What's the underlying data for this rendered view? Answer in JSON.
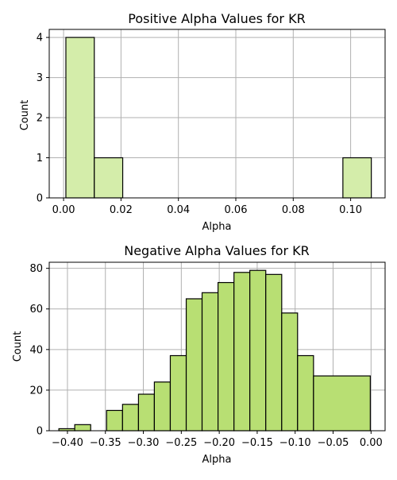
{
  "colors": {
    "positive_fill": "#d4edaa",
    "negative_fill": "#b8df73",
    "edge": "#000000",
    "grid": "#b0b0b0",
    "background": "#ffffff"
  },
  "chart_data": [
    {
      "type": "bar",
      "histogram": true,
      "title": "Positive Alpha Values for KR",
      "xlabel": "Alpha",
      "ylabel": "Count",
      "xlim": [
        -0.005,
        0.112
      ],
      "ylim": [
        0,
        4.2
      ],
      "grid": true,
      "xticks": [
        0.0,
        0.02,
        0.04,
        0.06,
        0.08,
        0.1
      ],
      "xtick_labels": [
        "0.00",
        "0.02",
        "0.04",
        "0.06",
        "0.08",
        "0.10"
      ],
      "yticks": [
        0,
        1,
        2,
        3,
        4
      ],
      "ytick_labels": [
        "0",
        "1",
        "2",
        "3",
        "4"
      ],
      "bins": [
        {
          "x0": 0.0008,
          "x1": 0.0107,
          "count": 4
        },
        {
          "x0": 0.0107,
          "x1": 0.0206,
          "count": 1
        },
        {
          "x0": 0.0206,
          "x1": 0.0305,
          "count": 0
        },
        {
          "x0": 0.0305,
          "x1": 0.0404,
          "count": 0
        },
        {
          "x0": 0.0404,
          "x1": 0.0503,
          "count": 0
        },
        {
          "x0": 0.0503,
          "x1": 0.0602,
          "count": 0
        },
        {
          "x0": 0.0602,
          "x1": 0.0701,
          "count": 0
        },
        {
          "x0": 0.0701,
          "x1": 0.08,
          "count": 0
        },
        {
          "x0": 0.08,
          "x1": 0.0899,
          "count": 0
        },
        {
          "x0": 0.0899,
          "x1": 0.0973,
          "count": 0
        },
        {
          "x0": 0.0973,
          "x1": 0.1072,
          "count": 1
        }
      ]
    },
    {
      "type": "bar",
      "histogram": true,
      "title": "Negative Alpha Values for KR",
      "xlabel": "Alpha",
      "ylabel": "Count",
      "xlim": [
        -0.424,
        0.0185
      ],
      "ylim": [
        0,
        83
      ],
      "grid": true,
      "xticks": [
        -0.4,
        -0.35,
        -0.3,
        -0.25,
        -0.2,
        -0.15,
        -0.1,
        -0.05,
        0.0
      ],
      "xtick_labels": [
        "−0.40",
        "−0.35",
        "−0.30",
        "−0.25",
        "−0.20",
        "−0.15",
        "−0.10",
        "−0.05",
        "0.00"
      ],
      "yticks": [
        0,
        20,
        40,
        60,
        80
      ],
      "ytick_labels": [
        "0",
        "20",
        "40",
        "60",
        "80"
      ],
      "bins": [
        {
          "x0": -0.4113,
          "x1": -0.3904,
          "count": 1
        },
        {
          "x0": -0.3904,
          "x1": -0.3694,
          "count": 3
        },
        {
          "x0": -0.3694,
          "x1": -0.3484,
          "count": 0
        },
        {
          "x0": -0.3484,
          "x1": -0.3274,
          "count": 10
        },
        {
          "x0": -0.3274,
          "x1": -0.3064,
          "count": 13
        },
        {
          "x0": -0.3064,
          "x1": -0.2855,
          "count": 18
        },
        {
          "x0": -0.2855,
          "x1": -0.2645,
          "count": 24
        },
        {
          "x0": -0.2645,
          "x1": -0.2435,
          "count": 37
        },
        {
          "x0": -0.2435,
          "x1": -0.2226,
          "count": 65
        },
        {
          "x0": -0.2226,
          "x1": -0.2016,
          "count": 68
        },
        {
          "x0": -0.2016,
          "x1": -0.1806,
          "count": 73
        },
        {
          "x0": -0.1806,
          "x1": -0.1597,
          "count": 78
        },
        {
          "x0": -0.1597,
          "x1": -0.1387,
          "count": 79
        },
        {
          "x0": -0.1387,
          "x1": -0.1177,
          "count": 77
        },
        {
          "x0": -0.1177,
          "x1": -0.0968,
          "count": 58
        },
        {
          "x0": -0.0968,
          "x1": -0.0758,
          "count": 37
        },
        {
          "x0": -0.0758,
          "x1": -0.001,
          "count": 27
        }
      ]
    }
  ]
}
